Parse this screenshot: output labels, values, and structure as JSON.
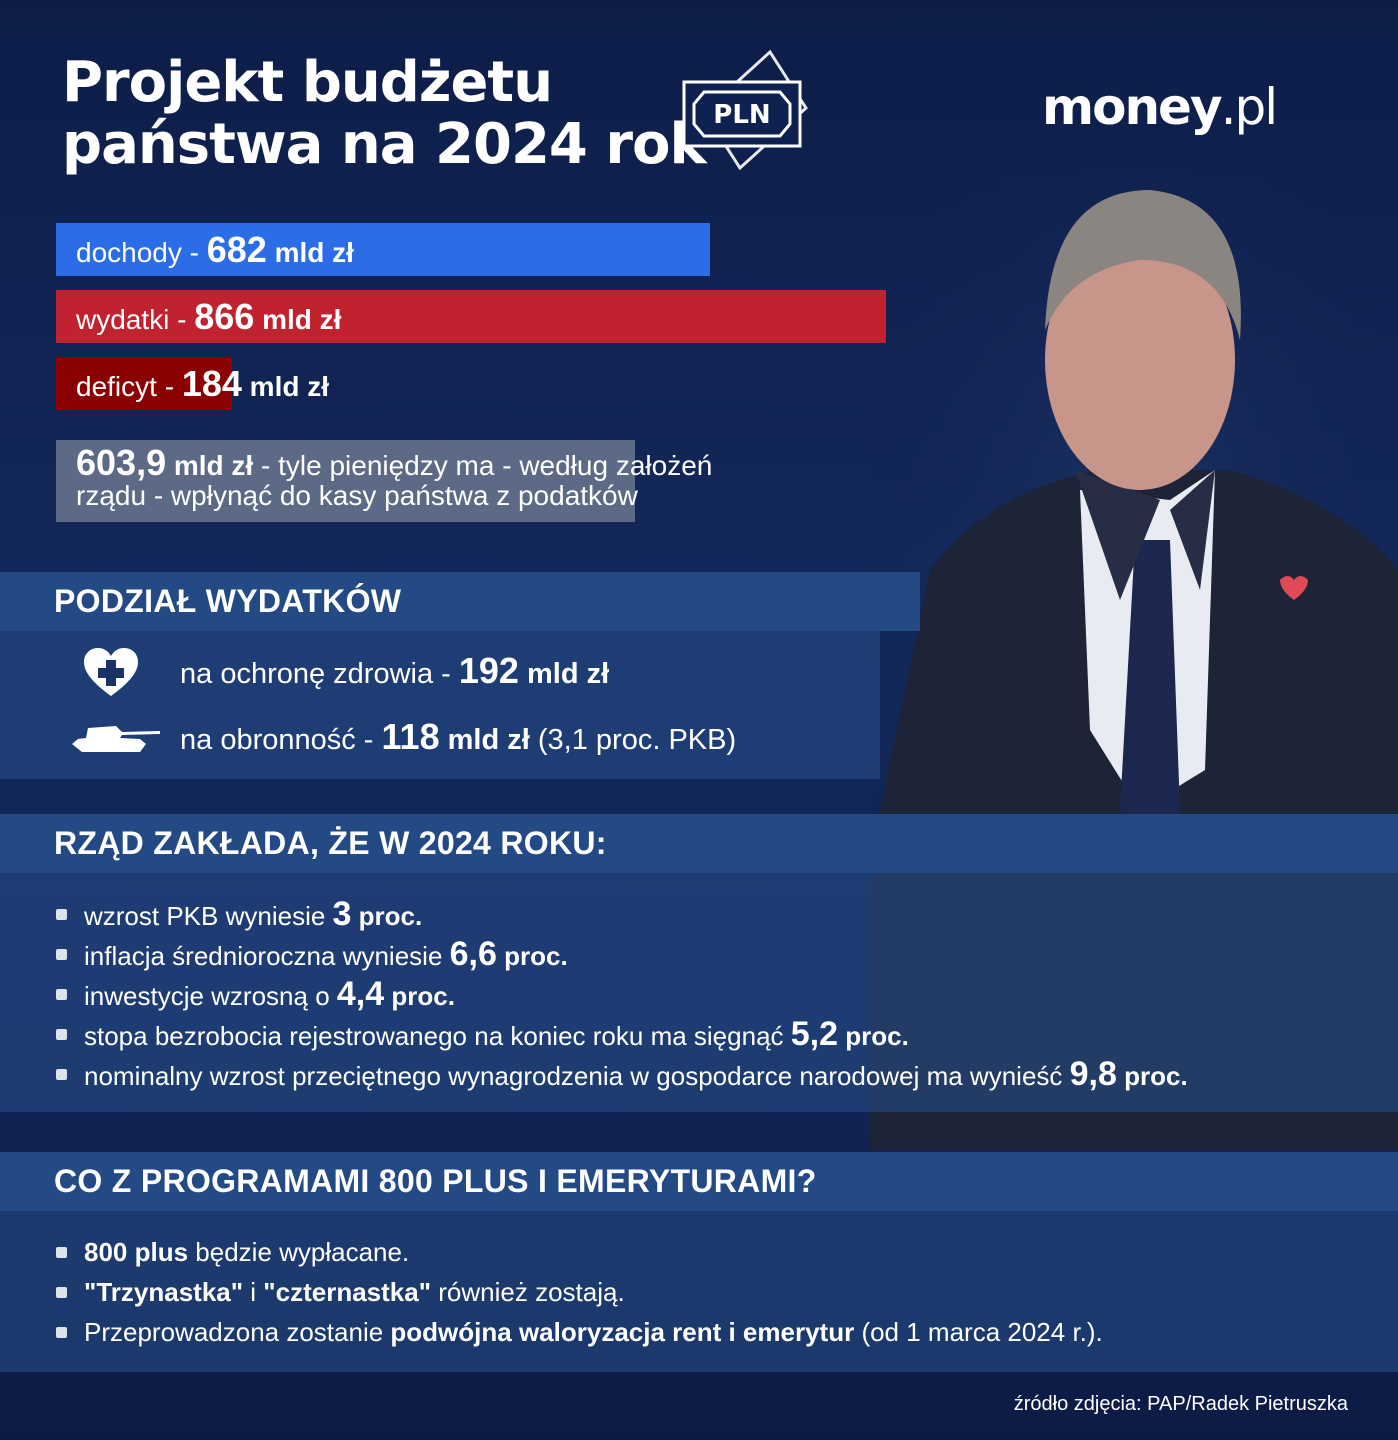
{
  "header": {
    "title_line1": "Projekt budżetu",
    "title_line2": "państwa na 2024 rok",
    "badge_text": "PLN",
    "logo_main": "money",
    "logo_suffix": ".pl"
  },
  "chart_data": {
    "type": "bar",
    "orientation": "horizontal",
    "unit": "mld zł",
    "categories": [
      "dochody",
      "wydatki",
      "deficyt"
    ],
    "values": [
      682,
      866,
      184
    ],
    "colors": [
      "#2a6de6",
      "#c0232f",
      "#8b0000"
    ],
    "labels": [
      {
        "name": "dochody",
        "sep": " - ",
        "value": "682",
        "unit": " mld zł"
      },
      {
        "name": "wydatki",
        "sep": " - ",
        "value": "866",
        "unit": " mld zł"
      },
      {
        "name": "deficyt",
        "sep": " - ",
        "value": "184",
        "unit": " mld zł"
      }
    ]
  },
  "note": {
    "value": "603,9",
    "unit": " mld zł",
    "text": " - tyle pieniędzy ma - według założeń rządu  - wpłynąć do kasy państwa z podatków"
  },
  "expenses": {
    "heading": "PODZIAŁ WYDATKÓW",
    "items": [
      {
        "icon": "heart-plus-icon",
        "label": "na ochronę zdrowia - ",
        "value": "192",
        "unit": " mld zł",
        "extra": ""
      },
      {
        "icon": "tank-icon",
        "label": "na obronność - ",
        "value": "118",
        "unit": " mld zł",
        "extra": " (3,1 proc. PKB)"
      }
    ]
  },
  "forecast": {
    "heading": "RZĄD ZAKŁADA, ŻE W 2024 ROKU:",
    "items": [
      {
        "text": "wzrost PKB wyniesie ",
        "value": "3",
        "unit": " proc."
      },
      {
        "text": "inflacja średnioroczna wyniesie ",
        "value": "6,6",
        "unit": " proc."
      },
      {
        "text": "inwestycje wzrosną o ",
        "value": "4,4",
        "unit": " proc."
      },
      {
        "text": "stopa bezrobocia rejestrowanego na koniec roku ma sięgnąć ",
        "value": "5,2",
        "unit": " proc."
      },
      {
        "text": "nominalny wzrost przeciętnego wynagrodzenia w gospodarce narodowej ma wynieść ",
        "value": "9,8",
        "unit": " proc."
      }
    ]
  },
  "programs": {
    "heading": "CO Z PROGRAMAMI 800 PLUS I EMERYTURAMI?",
    "i1_bold": "800 plus",
    "i1_rest": " będzie wypłacane.",
    "i2_b1": "\"Trzynastka\"",
    "i2_mid": " i ",
    "i2_b2": "\"czternastka\"",
    "i2_rest": " również zostają.",
    "i3_pre": "Przeprowadzona zostanie ",
    "i3_bold": "podwójna waloryzacja rent i emerytur",
    "i3_rest": " (od 1 marca 2024 r.)."
  },
  "credit": "źródło zdjęcia: PAP/Radek Pietruszka"
}
